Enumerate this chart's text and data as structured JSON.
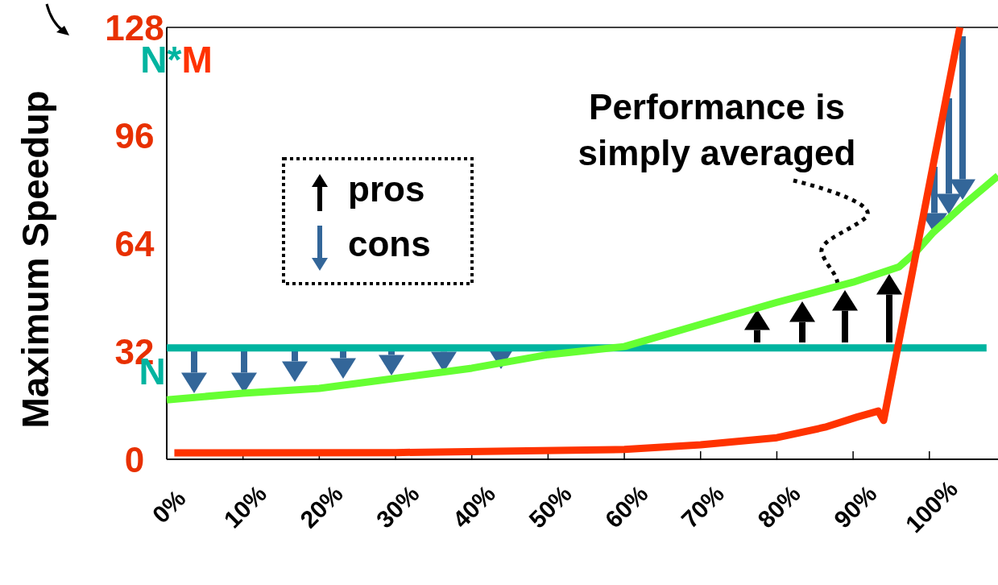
{
  "chart_data": {
    "type": "line",
    "ylabel": "Maximum Speedup",
    "xlim": [
      0,
      109
    ],
    "ylim": [
      0,
      128
    ],
    "xticks": [
      {
        "value": 0,
        "label": "0%"
      },
      {
        "value": 10,
        "label": "10%"
      },
      {
        "value": 20,
        "label": "20%"
      },
      {
        "value": 30,
        "label": "30%"
      },
      {
        "value": 40,
        "label": "40%"
      },
      {
        "value": 50,
        "label": "50%"
      },
      {
        "value": 60,
        "label": "60%"
      },
      {
        "value": 70,
        "label": "70%"
      },
      {
        "value": 80,
        "label": "80%"
      },
      {
        "value": 90,
        "label": "90%"
      },
      {
        "value": 100,
        "label": "100%"
      }
    ],
    "yticks": [
      0,
      32,
      64,
      96,
      128
    ],
    "series": [
      {
        "color": "#00b4a0",
        "x": [
          0,
          107.5
        ],
        "values": [
          33,
          33
        ]
      },
      {
        "color": "#66ff33",
        "x": [
          0,
          10,
          20,
          30,
          40,
          50,
          60,
          70,
          80,
          90,
          96,
          98.3,
          100.4,
          104.6,
          109
        ],
        "values": [
          17.6,
          19.6,
          21,
          24,
          27,
          31,
          33.4,
          40,
          46.5,
          52.5,
          57,
          61.6,
          67,
          75.6,
          84
        ]
      },
      {
        "color": "#ff3300",
        "x": [
          1,
          30,
          60,
          70,
          80,
          86.3,
          90.5,
          93.3,
          94,
          104
        ],
        "values": [
          1.9,
          2,
          2.9,
          4.3,
          6.4,
          9.5,
          12.5,
          14.3,
          11.5,
          128
        ]
      }
    ],
    "annotations": [
      "N",
      "N*M",
      {
        "text": "Performance is simply averaged",
        "x": 88,
        "y": 51
      },
      "pros",
      "cons"
    ],
    "grid": false,
    "marker": "none",
    "line_style": "solid"
  }
}
